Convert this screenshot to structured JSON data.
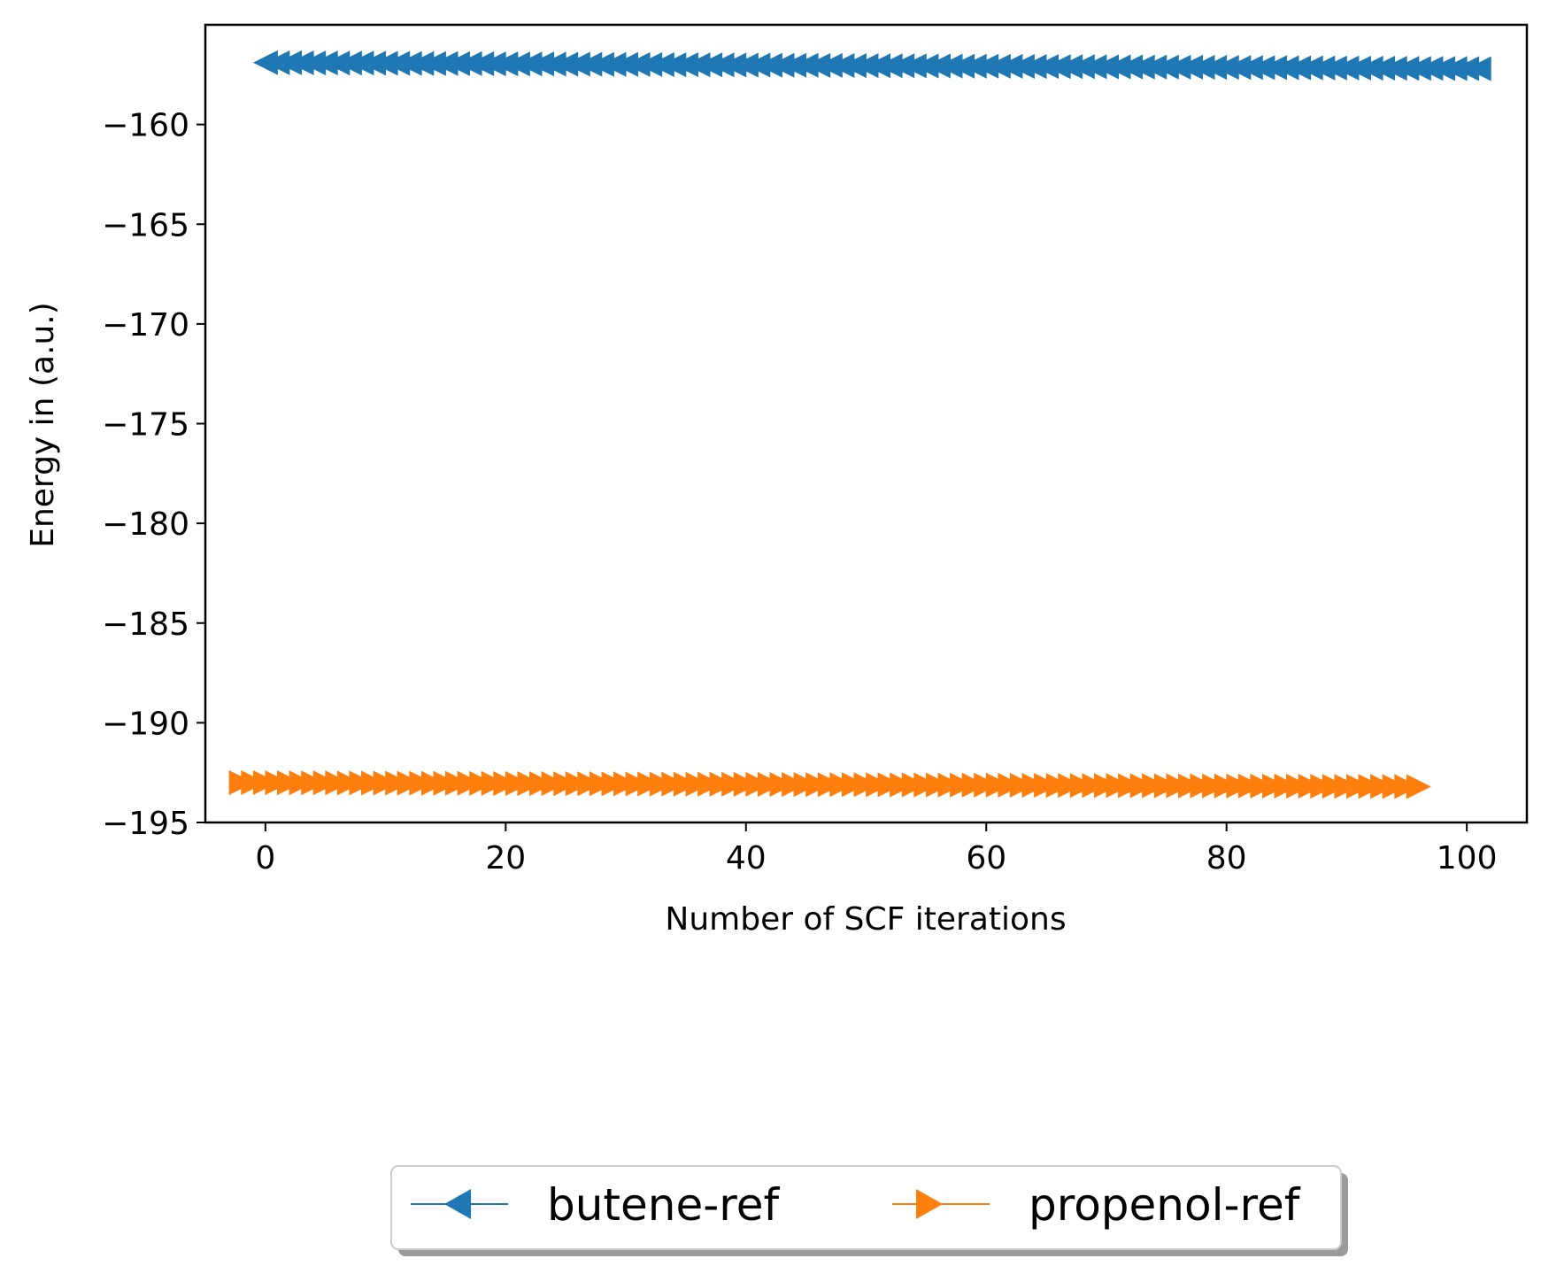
{
  "chart_data": {
    "type": "line",
    "title": "",
    "xlabel": "Number of SCF iterations",
    "ylabel": "Energy in (a.u.)",
    "xlim": [
      -5,
      105
    ],
    "ylim": [
      -195,
      -155
    ],
    "xticks": [
      0,
      20,
      40,
      60,
      80,
      100
    ],
    "yticks": [
      -160,
      -165,
      -170,
      -175,
      -180,
      -185,
      -190,
      -195
    ],
    "xtick_labels": [
      "0",
      "20",
      "40",
      "60",
      "80",
      100
    ],
    "ytick_labels": [
      "−160",
      "−165",
      "−170",
      "−175",
      "−180",
      "−185",
      "−190",
      "−195"
    ],
    "grid": false,
    "legend_placement": "bottom-center, below plot",
    "series": [
      {
        "name": "butene-ref",
        "color": "#1f77b4",
        "marker": "triangle-left",
        "x_start": 0,
        "x_end": 101,
        "y_start": -156.9,
        "y_end": -157.2,
        "points": 102
      },
      {
        "name": "propenol-ref",
        "color": "#ff7f0e",
        "marker": "triangle-right",
        "x_start": -2,
        "x_end": 96,
        "y_start": -193.0,
        "y_end": -193.2,
        "points": 99
      }
    ]
  }
}
